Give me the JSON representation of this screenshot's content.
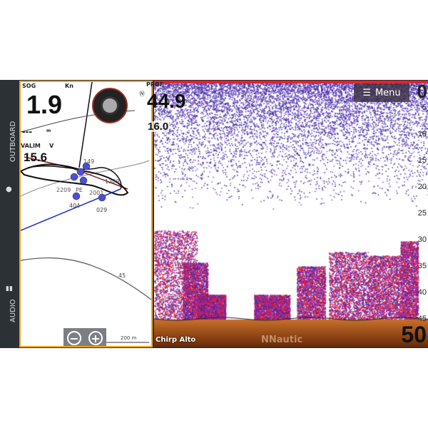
{
  "sidebar": {
    "items": [
      {
        "label": "OUTBOARD",
        "icon": "engine-icon"
      },
      {
        "label": "AUDIO",
        "icon": "equalizer-icon"
      }
    ]
  },
  "map": {
    "sog_label": "SOG",
    "sog_unit": "Kn",
    "sog_value": "1.9",
    "dash_value": "---",
    "dash_unit": "m",
    "valim_label": "VALIM",
    "valim_unit": "V",
    "valim_value": "15.6",
    "heading_label": "PROF",
    "heading_value": "44.9",
    "sub_value": "16.0",
    "labels": [
      "149",
      "1309",
      "2209",
      "PE",
      "2001",
      "404",
      "029"
    ],
    "contour_label": "45",
    "scale_label": "200 m",
    "zoom_out": "−",
    "zoom_in": "+"
  },
  "sonar": {
    "menu_label": "Menu",
    "depth_top": "0",
    "depth_bottom": "50",
    "depth_ticks": [
      "5",
      "10",
      "15",
      "20",
      "25",
      "30",
      "35",
      "40",
      "45"
    ],
    "mode_label": "Chirp Alto",
    "watermark": "NNautic",
    "colors": {
      "bottom": "#b05a14",
      "echo_weak": "#3a2a9a",
      "echo_strong": "#e8202a"
    }
  }
}
